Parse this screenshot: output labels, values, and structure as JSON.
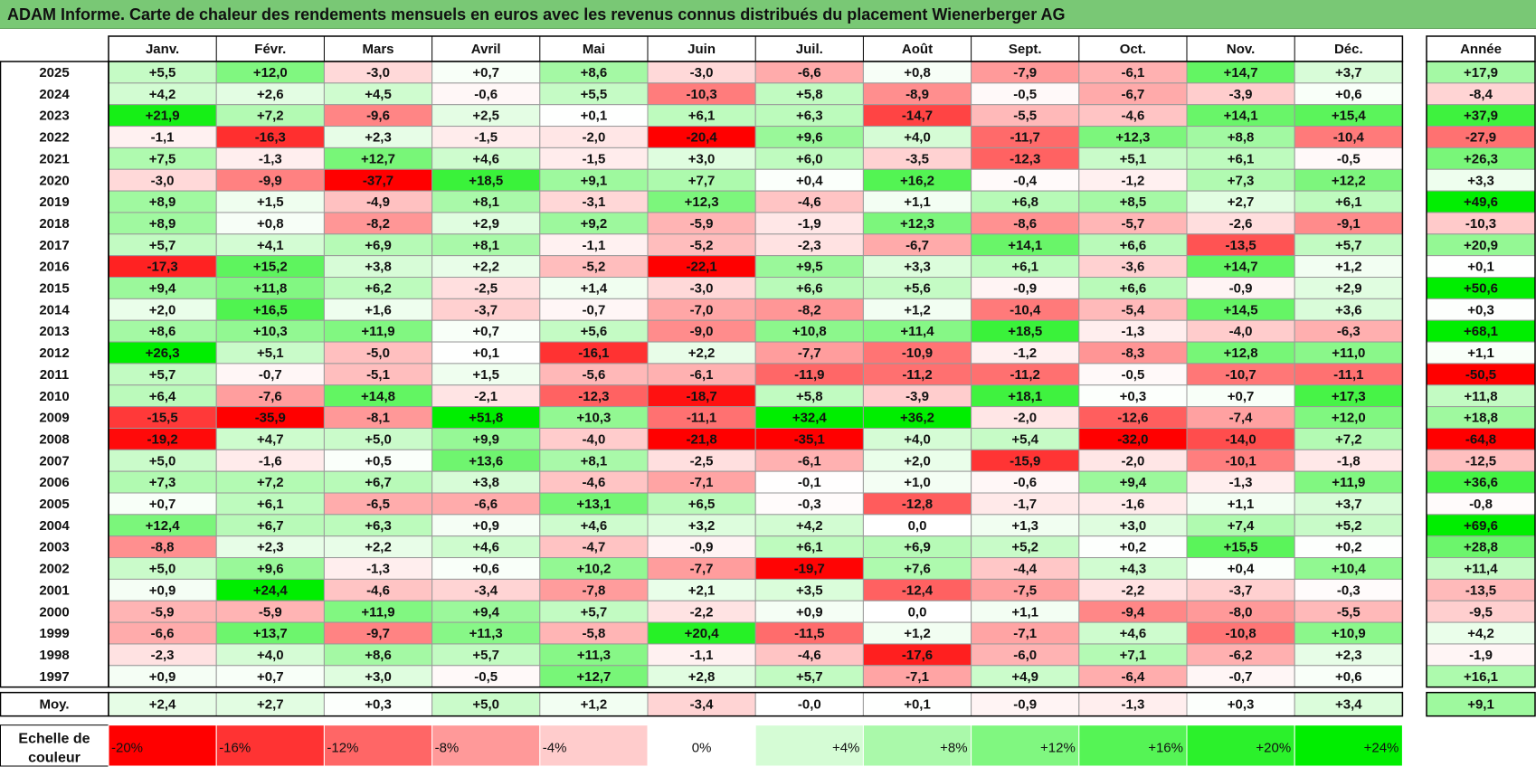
{
  "title": "ADAM Informe. Carte de chaleur des rendements mensuels en euros avec les revenus connus distribués du placement Wienerberger AG",
  "avg_label": "Moy.",
  "scale_label_line1": "Echelle de",
  "scale_label_line2": "couleur",
  "scale_labels": [
    "-20%",
    "-16%",
    "-12%",
    "-8%",
    "-4%",
    "0%",
    "+4%",
    "+8%",
    "+12%",
    "+16%",
    "+20%",
    "+24%"
  ],
  "scale_values": [
    -20,
    -16,
    -12,
    -8,
    -4,
    0,
    4,
    8,
    12,
    16,
    20,
    24
  ],
  "colors": {
    "negative": "#ff0000",
    "positive": "#00ee00",
    "neutral": "#ffffff",
    "title_bar": "#79c875"
  },
  "chart_data": {
    "type": "heatmap",
    "months": [
      "Janv.",
      "Févr.",
      "Mars",
      "Avril",
      "Mai",
      "Juin",
      "Juil.",
      "Août",
      "Sept.",
      "Oct.",
      "Nov.",
      "Déc."
    ],
    "year_header": "Année",
    "rows": [
      {
        "year": "2025",
        "values": [
          "+5,5",
          "+12,0",
          "-3,0",
          "+0,7",
          "+8,6",
          "-3,0",
          "-6,6",
          "+0,8",
          "-7,9",
          "-6,1",
          "+14,7",
          "+3,7"
        ],
        "annual": "+17,9"
      },
      {
        "year": "2024",
        "values": [
          "+4,2",
          "+2,6",
          "+4,5",
          "-0,6",
          "+5,5",
          "-10,3",
          "+5,8",
          "-8,9",
          "-0,5",
          "-6,7",
          "-3,9",
          "+0,6"
        ],
        "annual": "-8,4"
      },
      {
        "year": "2023",
        "values": [
          "+21,9",
          "+7,2",
          "-9,6",
          "+2,5",
          "+0,1",
          "+6,1",
          "+6,3",
          "-14,7",
          "-5,5",
          "-4,6",
          "+14,1",
          "+15,4"
        ],
        "annual": "+37,9"
      },
      {
        "year": "2022",
        "values": [
          "-1,1",
          "-16,3",
          "+2,3",
          "-1,5",
          "-2,0",
          "-20,4",
          "+9,6",
          "+4,0",
          "-11,7",
          "+12,3",
          "+8,8",
          "-10,4"
        ],
        "annual": "-27,9"
      },
      {
        "year": "2021",
        "values": [
          "+7,5",
          "-1,3",
          "+12,7",
          "+4,6",
          "-1,5",
          "+3,0",
          "+6,0",
          "-3,5",
          "-12,3",
          "+5,1",
          "+6,1",
          "-0,5"
        ],
        "annual": "+26,3"
      },
      {
        "year": "2020",
        "values": [
          "-3,0",
          "-9,9",
          "-37,7",
          "+18,5",
          "+9,1",
          "+7,7",
          "+0,4",
          "+16,2",
          "-0,4",
          "-1,2",
          "+7,3",
          "+12,2"
        ],
        "annual": "+3,3"
      },
      {
        "year": "2019",
        "values": [
          "+8,9",
          "+1,5",
          "-4,9",
          "+8,1",
          "-3,1",
          "+12,3",
          "-4,6",
          "+1,1",
          "+6,8",
          "+8,5",
          "+2,7",
          "+6,1"
        ],
        "annual": "+49,6"
      },
      {
        "year": "2018",
        "values": [
          "+8,9",
          "+0,8",
          "-8,2",
          "+2,9",
          "+9,2",
          "-5,9",
          "-1,9",
          "+12,3",
          "-8,6",
          "-5,7",
          "-2,6",
          "-9,1"
        ],
        "annual": "-10,3"
      },
      {
        "year": "2017",
        "values": [
          "+5,7",
          "+4,1",
          "+6,9",
          "+8,1",
          "-1,1",
          "-5,2",
          "-2,3",
          "-6,7",
          "+14,1",
          "+6,6",
          "-13,5",
          "+5,7"
        ],
        "annual": "+20,9"
      },
      {
        "year": "2016",
        "values": [
          "-17,3",
          "+15,2",
          "+3,8",
          "+2,2",
          "-5,2",
          "-22,1",
          "+9,5",
          "+3,3",
          "+6,1",
          "-3,6",
          "+14,7",
          "+1,2"
        ],
        "annual": "+0,1"
      },
      {
        "year": "2015",
        "values": [
          "+9,4",
          "+11,8",
          "+6,2",
          "-2,5",
          "+1,4",
          "-3,0",
          "+6,6",
          "+5,6",
          "-0,9",
          "+6,6",
          "-0,9",
          "+2,9"
        ],
        "annual": "+50,6"
      },
      {
        "year": "2014",
        "values": [
          "+2,0",
          "+16,5",
          "+1,6",
          "-3,7",
          "-0,7",
          "-7,0",
          "-8,2",
          "+1,2",
          "-10,4",
          "-5,4",
          "+14,5",
          "+3,6"
        ],
        "annual": "+0,3"
      },
      {
        "year": "2013",
        "values": [
          "+8,6",
          "+10,3",
          "+11,9",
          "+0,7",
          "+5,6",
          "-9,0",
          "+10,8",
          "+11,4",
          "+18,5",
          "-1,3",
          "-4,0",
          "-6,3"
        ],
        "annual": "+68,1"
      },
      {
        "year": "2012",
        "values": [
          "+26,3",
          "+5,1",
          "-5,0",
          "+0,1",
          "-16,1",
          "+2,2",
          "-7,7",
          "-10,9",
          "-1,2",
          "-8,3",
          "+12,8",
          "+11,0"
        ],
        "annual": "+1,1"
      },
      {
        "year": "2011",
        "values": [
          "+5,7",
          "-0,7",
          "-5,1",
          "+1,5",
          "-5,6",
          "-6,1",
          "-11,9",
          "-11,2",
          "-11,2",
          "-0,5",
          "-10,7",
          "-11,1"
        ],
        "annual": "-50,5"
      },
      {
        "year": "2010",
        "values": [
          "+6,4",
          "-7,6",
          "+14,8",
          "-2,1",
          "-12,3",
          "-18,7",
          "+5,8",
          "-3,9",
          "+18,1",
          "+0,3",
          "+0,7",
          "+17,3"
        ],
        "annual": "+11,8"
      },
      {
        "year": "2009",
        "values": [
          "-15,5",
          "-35,9",
          "-8,1",
          "+51,8",
          "+10,3",
          "-11,1",
          "+32,4",
          "+36,2",
          "-2,0",
          "-12,6",
          "-7,4",
          "+12,0"
        ],
        "annual": "+18,8"
      },
      {
        "year": "2008",
        "values": [
          "-19,2",
          "+4,7",
          "+5,0",
          "+9,9",
          "-4,0",
          "-21,8",
          "-35,1",
          "+4,0",
          "+5,4",
          "-32,0",
          "-14,0",
          "+7,2"
        ],
        "annual": "-64,8"
      },
      {
        "year": "2007",
        "values": [
          "+5,0",
          "-1,6",
          "+0,5",
          "+13,6",
          "+8,1",
          "-2,5",
          "-6,1",
          "+2,0",
          "-15,9",
          "-2,0",
          "-10,1",
          "-1,8"
        ],
        "annual": "-12,5"
      },
      {
        "year": "2006",
        "values": [
          "+7,3",
          "+7,2",
          "+6,7",
          "+3,8",
          "-4,6",
          "-7,1",
          "-0,1",
          "+1,0",
          "-0,6",
          "+9,4",
          "-1,3",
          "+11,9"
        ],
        "annual": "+36,6"
      },
      {
        "year": "2005",
        "values": [
          "+0,7",
          "+6,1",
          "-6,5",
          "-6,6",
          "+13,1",
          "+6,5",
          "-0,3",
          "-12,8",
          "-1,7",
          "-1,6",
          "+1,1",
          "+3,7"
        ],
        "annual": "-0,8"
      },
      {
        "year": "2004",
        "values": [
          "+12,4",
          "+6,7",
          "+6,3",
          "+0,9",
          "+4,6",
          "+3,2",
          "+4,2",
          "0,0",
          "+1,3",
          "+3,0",
          "+7,4",
          "+5,2"
        ],
        "annual": "+69,6"
      },
      {
        "year": "2003",
        "values": [
          "-8,8",
          "+2,3",
          "+2,2",
          "+4,6",
          "-4,7",
          "-0,9",
          "+6,1",
          "+6,9",
          "+5,2",
          "+0,2",
          "+15,5",
          "+0,2"
        ],
        "annual": "+28,8"
      },
      {
        "year": "2002",
        "values": [
          "+5,0",
          "+9,6",
          "-1,3",
          "+0,6",
          "+10,2",
          "-7,7",
          "-19,7",
          "+7,6",
          "-4,4",
          "+4,3",
          "+0,4",
          "+10,4"
        ],
        "annual": "+11,4"
      },
      {
        "year": "2001",
        "values": [
          "+0,9",
          "+24,4",
          "-4,6",
          "-3,4",
          "-7,8",
          "+2,1",
          "+3,5",
          "-12,4",
          "-7,5",
          "-2,2",
          "-3,7",
          "-0,3"
        ],
        "annual": "-13,5"
      },
      {
        "year": "2000",
        "values": [
          "-5,9",
          "-5,9",
          "+11,9",
          "+9,4",
          "+5,7",
          "-2,2",
          "+0,9",
          "0,0",
          "+1,1",
          "-9,4",
          "-8,0",
          "-5,5"
        ],
        "annual": "-9,5"
      },
      {
        "year": "1999",
        "values": [
          "-6,6",
          "+13,7",
          "-9,7",
          "+11,3",
          "-5,8",
          "+20,4",
          "-11,5",
          "+1,2",
          "-7,1",
          "+4,6",
          "-10,8",
          "+10,9"
        ],
        "annual": "+4,2"
      },
      {
        "year": "1998",
        "values": [
          "-2,3",
          "+4,0",
          "+8,6",
          "+5,7",
          "+11,3",
          "-1,1",
          "-4,6",
          "-17,6",
          "-6,0",
          "+7,1",
          "-6,2",
          "+2,3"
        ],
        "annual": "-1,9"
      },
      {
        "year": "1997",
        "values": [
          "+0,9",
          "+0,7",
          "+3,0",
          "-0,5",
          "+12,7",
          "+2,8",
          "+5,7",
          "-7,1",
          "+4,9",
          "-6,4",
          "-0,7",
          "+0,6"
        ],
        "annual": "+16,1"
      }
    ],
    "averages": [
      "+2,4",
      "+2,7",
      "+0,3",
      "+5,0",
      "+1,2",
      "-3,4",
      "-0,0",
      "+0,1",
      "-0,9",
      "-1,3",
      "+0,3",
      "+3,4"
    ],
    "average_annual": "+9,1"
  }
}
